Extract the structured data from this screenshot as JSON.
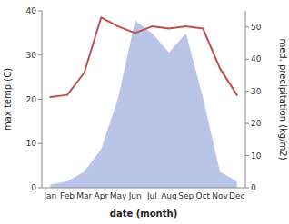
{
  "chart_data": {
    "type": "line",
    "xlabel": "date (month)",
    "ylabel": "max temp (C)",
    "y2label": "med. precipitation (kg/m2)",
    "categories": [
      "Jan",
      "Feb",
      "Mar",
      "Apr",
      "May",
      "Jun",
      "Jul",
      "Aug",
      "Sep",
      "Oct",
      "Nov",
      "Dec"
    ],
    "series": [
      {
        "type": "area",
        "axis": "y2",
        "color": "#b8c4e8",
        "values": [
          1.0,
          2.0,
          5.0,
          12.0,
          28.0,
          52.0,
          48.0,
          42.0,
          48.0,
          28.0,
          5.0,
          2.0
        ]
      },
      {
        "type": "line",
        "color": "#c0504d",
        "values": [
          20.5,
          21.0,
          26.0,
          38.5,
          36.5,
          35.0,
          36.5,
          36.0,
          36.5,
          36.0,
          27.0,
          21.0
        ]
      }
    ],
    "ylim": [
      0,
      40
    ],
    "yticks": [
      0,
      10,
      20,
      30,
      40
    ],
    "y2lim": [
      0,
      55
    ],
    "y2ticks": [
      0,
      10,
      20,
      30,
      40,
      50
    ],
    "grid": false
  }
}
